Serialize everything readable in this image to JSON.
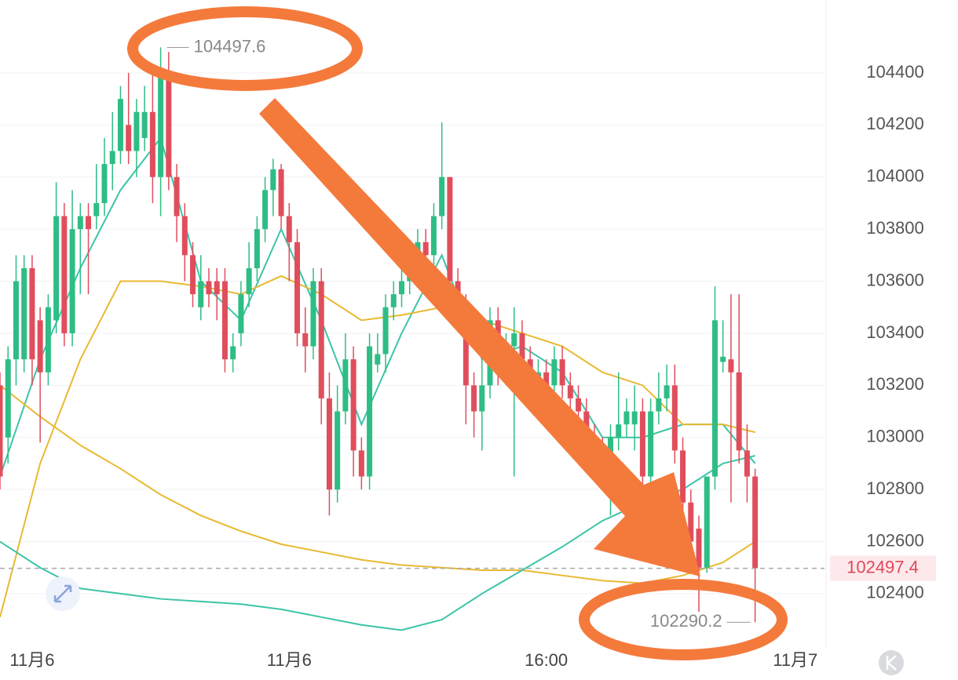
{
  "chart_data": {
    "type": "candlestick",
    "up_color": "#2ebd85",
    "down_color": "#e04e5c",
    "ylim": [
      102210,
      104680
    ],
    "yticks": [
      102400,
      102600,
      102800,
      103000,
      103200,
      103400,
      103600,
      103800,
      104000,
      104200,
      104400
    ],
    "grid": true,
    "xlim": [
      0,
      100
    ],
    "xticks": [
      {
        "value": 4,
        "label": "11月6"
      },
      {
        "value": 36,
        "label": "11月6"
      },
      {
        "value": 68,
        "label": "16:00"
      },
      {
        "value": 99,
        "label": "11月7"
      }
    ],
    "candles": [
      [
        103200,
        103250,
        102800,
        102850
      ],
      [
        103000,
        103350,
        102900,
        103300
      ],
      [
        103300,
        103700,
        103200,
        103600
      ],
      [
        103300,
        103700,
        103250,
        103650
      ],
      [
        103650,
        103700,
        103200,
        103300
      ],
      [
        103450,
        103500,
        102980,
        103250
      ],
      [
        103250,
        103550,
        103200,
        103500
      ],
      [
        103450,
        103980,
        103400,
        103850
      ],
      [
        103850,
        103900,
        103350,
        103400
      ],
      [
        103400,
        103950,
        103350,
        103800
      ],
      [
        103800,
        103900,
        103550,
        103850
      ],
      [
        103850,
        103900,
        103550,
        103800
      ],
      [
        103850,
        104050,
        103800,
        103900
      ],
      [
        103900,
        104150,
        103850,
        104050
      ],
      [
        104050,
        104250,
        103950,
        104100
      ],
      [
        104100,
        104350,
        104050,
        104300
      ],
      [
        104200,
        104400,
        104050,
        104100
      ],
      [
        104100,
        104300,
        104000,
        104250
      ],
      [
        104150,
        104350,
        104100,
        104250
      ],
      [
        104250,
        104400,
        103900,
        104000
      ],
      [
        104000,
        104497.6,
        103850,
        104400
      ],
      [
        104400,
        104480,
        103950,
        104000
      ],
      [
        104000,
        104050,
        103750,
        103850
      ],
      [
        103850,
        103900,
        103600,
        103700
      ],
      [
        103700,
        103750,
        103500,
        103550
      ],
      [
        103500,
        103700,
        103450,
        103600
      ],
      [
        103600,
        103650,
        103500,
        103550
      ],
      [
        103600,
        103650,
        103450,
        103550
      ],
      [
        103600,
        103650,
        103250,
        103300
      ],
      [
        103300,
        103400,
        103250,
        103350
      ],
      [
        103400,
        103600,
        103350,
        103550
      ],
      [
        103550,
        103750,
        103500,
        103650
      ],
      [
        103650,
        103850,
        103600,
        103800
      ],
      [
        103800,
        104000,
        103750,
        103950
      ],
      [
        103950,
        104070,
        103850,
        104030
      ],
      [
        104030,
        104050,
        103800,
        103850
      ],
      [
        103850,
        103900,
        103600,
        103750
      ],
      [
        103750,
        103800,
        103350,
        103400
      ],
      [
        103400,
        103500,
        103250,
        103350
      ],
      [
        103350,
        103650,
        103300,
        103600
      ],
      [
        103600,
        103650,
        103050,
        103150
      ],
      [
        103150,
        103250,
        102700,
        102800
      ],
      [
        102800,
        103200,
        102750,
        103100
      ],
      [
        103100,
        103400,
        103050,
        103300
      ],
      [
        103300,
        103350,
        102850,
        102950
      ],
      [
        102950,
        103000,
        102800,
        102850
      ],
      [
        102850,
        103400,
        102800,
        103350
      ],
      [
        103280,
        103400,
        103250,
        103320
      ],
      [
        103320,
        103550,
        103250,
        103500
      ],
      [
        103500,
        103600,
        103450,
        103550
      ],
      [
        103550,
        103650,
        103500,
        103600
      ],
      [
        103600,
        103700,
        103550,
        103650
      ],
      [
        103650,
        103800,
        103600,
        103750
      ],
      [
        103750,
        103800,
        103650,
        103700
      ],
      [
        103700,
        103900,
        103650,
        103850
      ],
      [
        103850,
        104210,
        103800,
        104000
      ],
      [
        104000,
        104000,
        103550,
        103600
      ],
      [
        103600,
        103650,
        103450,
        103500
      ],
      [
        103500,
        103550,
        103050,
        103200
      ],
      [
        103200,
        103250,
        103000,
        103100
      ],
      [
        103100,
        103300,
        102950,
        103200
      ],
      [
        103200,
        103500,
        103150,
        103450
      ],
      [
        103450,
        103500,
        103200,
        103250
      ],
      [
        103250,
        103400,
        103200,
        103350
      ],
      [
        103350,
        103500,
        102850,
        103400
      ],
      [
        103400,
        103450,
        103250,
        103300
      ],
      [
        103300,
        103350,
        103100,
        103200
      ],
      [
        103200,
        103300,
        103100,
        103250
      ],
      [
        103250,
        103300,
        103150,
        103200
      ],
      [
        103200,
        103350,
        103150,
        103300
      ],
      [
        103300,
        103350,
        103150,
        103200
      ],
      [
        103200,
        103250,
        103050,
        103150
      ],
      [
        103150,
        103200,
        103000,
        103100
      ],
      [
        103100,
        103150,
        102950,
        103000
      ],
      [
        103000,
        103050,
        102900,
        102950
      ],
      [
        102950,
        103000,
        102850,
        102900
      ],
      [
        102900,
        103050,
        102700,
        103000
      ],
      [
        103000,
        103250,
        102950,
        103050
      ],
      [
        103050,
        103150,
        103000,
        103100
      ],
      [
        103050,
        103200,
        102950,
        103100
      ],
      [
        103100,
        103150,
        102800,
        102850
      ],
      [
        102850,
        103150,
        102800,
        103100
      ],
      [
        103100,
        103250,
        103050,
        103150
      ],
      [
        103150,
        103280,
        103100,
        103200
      ],
      [
        103200,
        103280,
        102900,
        102950
      ],
      [
        102950,
        103000,
        102700,
        102750
      ],
      [
        102750,
        102800,
        102550,
        102600
      ],
      [
        102650,
        102700,
        102330,
        102500
      ],
      [
        102500,
        102850,
        102480,
        102850
      ],
      [
        102850,
        103580,
        102800,
        103450
      ],
      [
        103290,
        103450,
        103250,
        103310
      ],
      [
        103300,
        103550,
        102750,
        103250
      ],
      [
        103250,
        103550,
        102900,
        102950
      ],
      [
        102950,
        103050,
        102750,
        102850
      ],
      [
        102850,
        102880,
        102290.2,
        102497.4
      ]
    ],
    "ma_x": [
      0,
      5,
      10,
      15,
      20,
      25,
      30,
      35,
      40,
      45,
      50,
      55,
      60,
      65,
      70,
      75,
      80,
      85,
      90,
      94
    ],
    "ma_series": [
      {
        "color": "#3cc4a8",
        "values": [
          102850,
          103300,
          103650,
          103950,
          104150,
          103600,
          103450,
          103800,
          103450,
          103050,
          103400,
          103700,
          103300,
          103350,
          103250,
          103000,
          103000,
          103050,
          103050,
          102900
        ]
      },
      {
        "color": "#e8b931",
        "values": [
          102310,
          102900,
          103300,
          103600,
          103600,
          103580,
          103550,
          103620,
          103550,
          103450,
          103470,
          103500,
          103450,
          103400,
          103350,
          103250,
          103200,
          103050,
          103050,
          103020
        ]
      },
      {
        "color": "#e8b931",
        "values": [
          103200,
          103080,
          102970,
          102880,
          102780,
          102700,
          102640,
          102590,
          102560,
          102530,
          102510,
          102500,
          102490,
          102490,
          102470,
          102450,
          102440,
          102470,
          102520,
          102600
        ]
      },
      {
        "color": "#3cc4a8",
        "values": [
          102600,
          102500,
          102420,
          102400,
          102380,
          102370,
          102360,
          102340,
          102310,
          102280,
          102260,
          102300,
          102400,
          102490,
          102580,
          102680,
          102750,
          102800,
          102900,
          102930
        ]
      }
    ],
    "high": 104497.6,
    "low": 102290.2,
    "last_price": 102497.4
  }
}
